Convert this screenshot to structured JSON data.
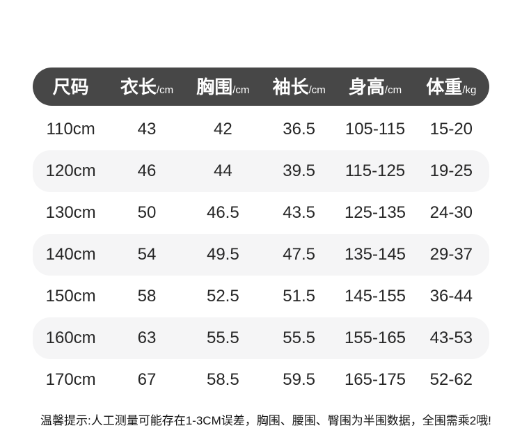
{
  "chart_data": {
    "type": "table",
    "columns": [
      {
        "label": "尺码",
        "unit": ""
      },
      {
        "label": "衣长",
        "unit": "/cm"
      },
      {
        "label": "胸围",
        "unit": "/cm"
      },
      {
        "label": "袖长",
        "unit": "/cm"
      },
      {
        "label": "身高",
        "unit": "/cm"
      },
      {
        "label": "体重",
        "unit": "/kg"
      }
    ],
    "rows": [
      [
        "110cm",
        "43",
        "42",
        "36.5",
        "105-115",
        "15-20"
      ],
      [
        "120cm",
        "46",
        "44",
        "39.5",
        "115-125",
        "19-25"
      ],
      [
        "130cm",
        "50",
        "46.5",
        "43.5",
        "125-135",
        "24-30"
      ],
      [
        "140cm",
        "54",
        "49.5",
        "47.5",
        "135-145",
        "29-37"
      ],
      [
        "150cm",
        "58",
        "52.5",
        "51.5",
        "145-155",
        "36-44"
      ],
      [
        "160cm",
        "63",
        "55.5",
        "55.5",
        "155-165",
        "43-53"
      ],
      [
        "170cm",
        "67",
        "58.5",
        "59.5",
        "165-175",
        "52-62"
      ]
    ],
    "title": "",
    "layout_hints": {
      "alternating_row_bands": [
        1,
        3,
        5
      ],
      "header_style": "dark-pill"
    }
  },
  "note": "温馨提示:人工测量可能存在1-3CM误差，胸围、腰围、臀围为半围数据，全围需乘2哦!",
  "colors": {
    "header_bg": "#474747",
    "header_text": "#ffffff",
    "row_alt_bg": "#f5f5f6",
    "body_text": "#262626",
    "note_text": "#141414",
    "page_bg": "#ffffff"
  }
}
